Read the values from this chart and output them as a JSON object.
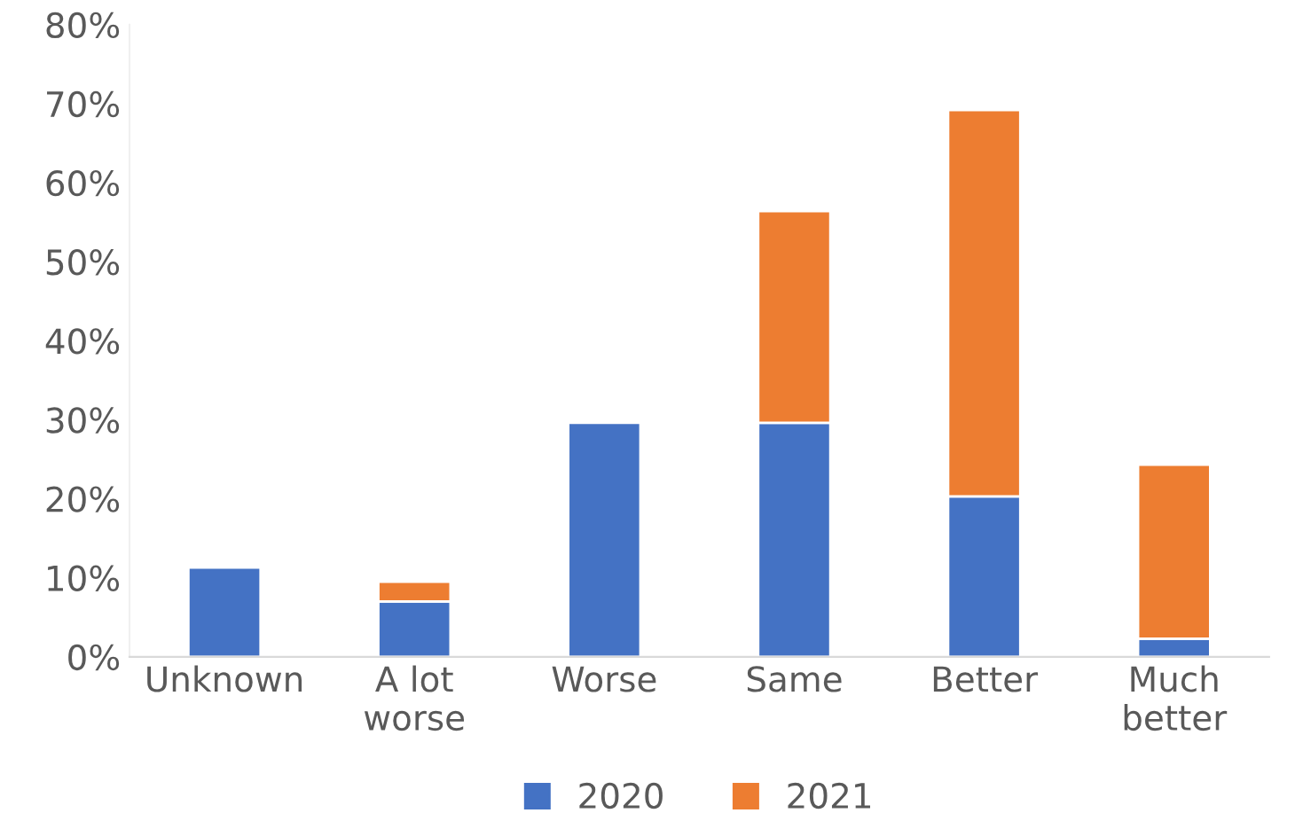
{
  "chart_data": {
    "type": "bar",
    "stacked": true,
    "categories": [
      "Unknown",
      "A lot worse",
      "Worse",
      "Same",
      "Better",
      "Much better"
    ],
    "series": [
      {
        "name": "2020",
        "color": "#4472c4",
        "values": [
          11.3,
          7.0,
          29.6,
          29.6,
          20.3,
          2.3
        ]
      },
      {
        "name": "2021",
        "color": "#ed7d31",
        "values": [
          null,
          2.5,
          null,
          26.8,
          48.9,
          22.0
        ]
      }
    ],
    "ylim": [
      0,
      80
    ],
    "yticks": [
      {
        "value": 0,
        "label": "0%"
      },
      {
        "value": 10,
        "label": "10%"
      },
      {
        "value": 20,
        "label": "20%"
      },
      {
        "value": 30,
        "label": "30%"
      },
      {
        "value": 40,
        "label": "40%"
      },
      {
        "value": 50,
        "label": "50%"
      },
      {
        "value": 60,
        "label": "60%"
      },
      {
        "value": 70,
        "label": "70%"
      },
      {
        "value": 80,
        "label": "80%"
      }
    ],
    "grid": false,
    "legend": "bottom"
  }
}
